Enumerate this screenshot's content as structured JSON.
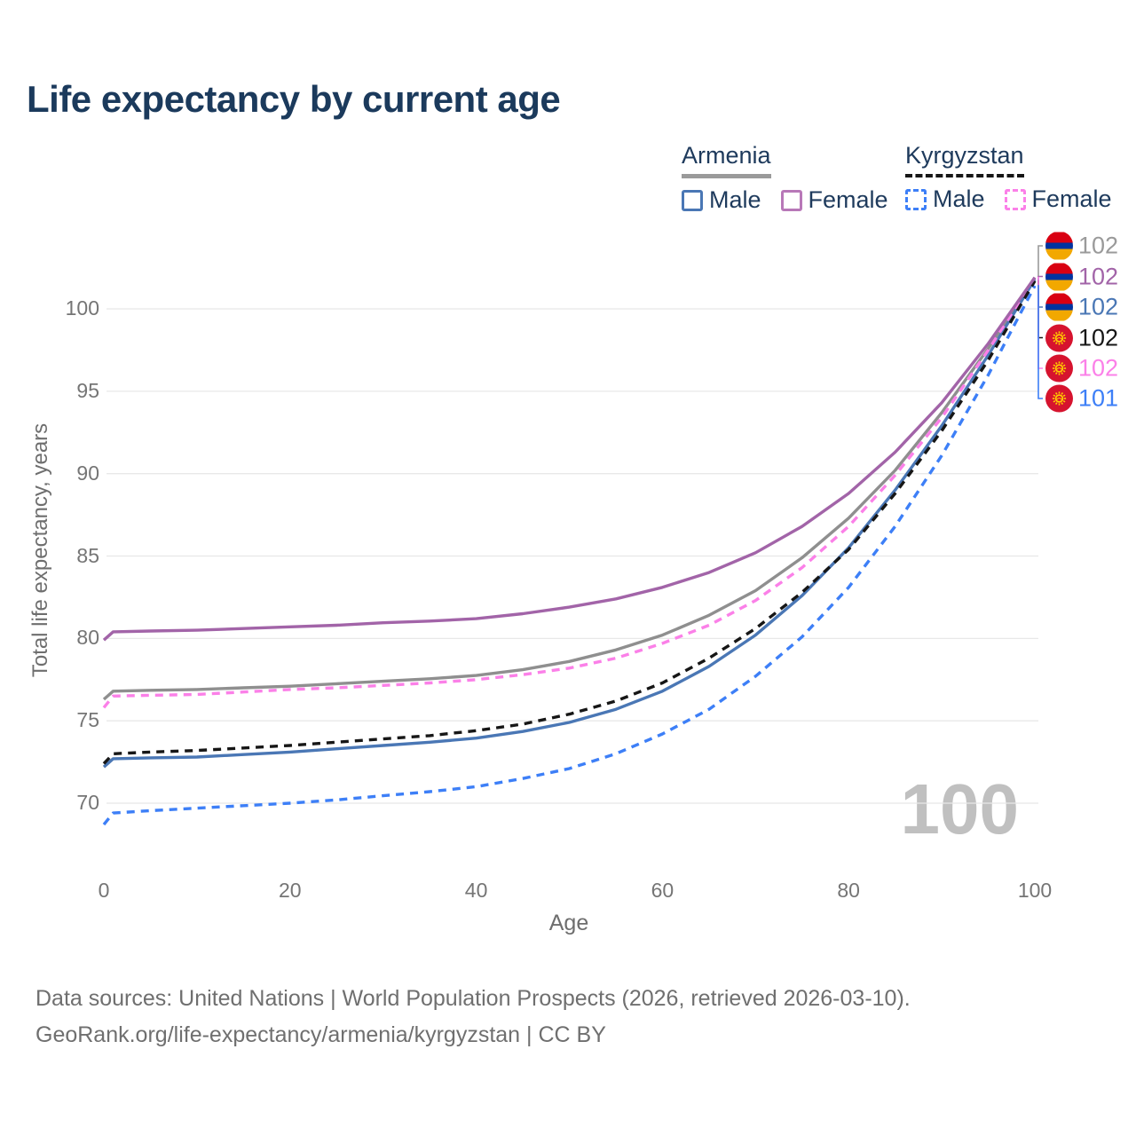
{
  "title": "Life expectancy by current age",
  "watermark_age": "100",
  "footer": {
    "line1": "Data sources: United Nations | World Population Prospects (2026, retrieved 2026-03-10).",
    "line2": "GeoRank.org/life-expectancy/armenia/kyrgyzstan | CC BY"
  },
  "colors": {
    "title_text": "#1b3a5c",
    "legend_text": "#1e3a5c",
    "tick_text": "#757575",
    "axis_title_text": "#6e6e6e",
    "gridline": "#e8e8e8",
    "watermark": "#c0c0c0",
    "armenia_underline": "#9a9a9a",
    "kyrgyzstan_underline": "#161616",
    "flag_armenia_red": "#D90012",
    "flag_armenia_blue": "#0033A0",
    "flag_armenia_orange": "#F2A800",
    "flag_kyrgyzstan_red": "#D6132E",
    "flag_kyrgyzstan_sun": "#FFCC00"
  },
  "legend": {
    "groups": [
      {
        "name": "Armenia",
        "underline_style": "solid",
        "underline_color": "#9a9a9a",
        "items": [
          {
            "label": "Male",
            "color": "#4a77b5",
            "dashed": false
          },
          {
            "label": "Female",
            "color": "#b878b8",
            "dashed": false
          }
        ]
      },
      {
        "name": "Kyrgyzstan",
        "underline_style": "dashed",
        "underline_color": "#161616",
        "items": [
          {
            "label": "Male",
            "color": "#3d7ff7",
            "dashed": true
          },
          {
            "label": "Female",
            "color": "#fb80e8",
            "dashed": true
          }
        ]
      }
    ]
  },
  "chart_data": {
    "type": "line",
    "title": "Life expectancy by current age",
    "xlabel": "Age",
    "ylabel": "Total life expectancy, years",
    "xlim": [
      0,
      100
    ],
    "ylim": [
      67,
      103
    ],
    "x_ticks": [
      0,
      20,
      40,
      60,
      80,
      100
    ],
    "y_ticks": [
      70,
      75,
      80,
      85,
      90,
      95,
      100
    ],
    "grid": "horizontal",
    "legend_position": "top-right",
    "series": [
      {
        "id": "armenia_male",
        "name": "Armenia Male",
        "color": "#4a77b5",
        "dashed": false,
        "values": [
          [
            0,
            72.2
          ],
          [
            1,
            72.7
          ],
          [
            5,
            72.75
          ],
          [
            10,
            72.8
          ],
          [
            15,
            72.95
          ],
          [
            20,
            73.1
          ],
          [
            25,
            73.3
          ],
          [
            30,
            73.5
          ],
          [
            35,
            73.7
          ],
          [
            40,
            73.95
          ],
          [
            45,
            74.35
          ],
          [
            50,
            74.9
          ],
          [
            55,
            75.7
          ],
          [
            60,
            76.8
          ],
          [
            65,
            78.3
          ],
          [
            70,
            80.2
          ],
          [
            75,
            82.6
          ],
          [
            80,
            85.5
          ],
          [
            85,
            89.0
          ],
          [
            90,
            92.9
          ],
          [
            95,
            97.2
          ],
          [
            100,
            101.8
          ]
        ]
      },
      {
        "id": "armenia_female",
        "name": "Armenia Female",
        "color": "#a264a8",
        "dashed": false,
        "values": [
          [
            0,
            79.9
          ],
          [
            1,
            80.4
          ],
          [
            5,
            80.45
          ],
          [
            10,
            80.5
          ],
          [
            15,
            80.6
          ],
          [
            20,
            80.7
          ],
          [
            25,
            80.8
          ],
          [
            30,
            80.95
          ],
          [
            35,
            81.05
          ],
          [
            40,
            81.2
          ],
          [
            45,
            81.5
          ],
          [
            50,
            81.9
          ],
          [
            55,
            82.4
          ],
          [
            60,
            83.1
          ],
          [
            65,
            84.0
          ],
          [
            70,
            85.2
          ],
          [
            75,
            86.8
          ],
          [
            80,
            88.8
          ],
          [
            85,
            91.3
          ],
          [
            90,
            94.3
          ],
          [
            95,
            97.9
          ],
          [
            100,
            101.9
          ]
        ]
      },
      {
        "id": "armenia_both",
        "name": "Armenia Both sexes",
        "color": "#8f8f8f",
        "dashed": false,
        "values": [
          [
            0,
            76.3
          ],
          [
            1,
            76.8
          ],
          [
            5,
            76.85
          ],
          [
            10,
            76.9
          ],
          [
            15,
            77.0
          ],
          [
            20,
            77.1
          ],
          [
            25,
            77.25
          ],
          [
            30,
            77.4
          ],
          [
            35,
            77.55
          ],
          [
            40,
            77.75
          ],
          [
            45,
            78.1
          ],
          [
            50,
            78.6
          ],
          [
            55,
            79.3
          ],
          [
            60,
            80.2
          ],
          [
            65,
            81.4
          ],
          [
            70,
            82.9
          ],
          [
            75,
            84.9
          ],
          [
            80,
            87.3
          ],
          [
            85,
            90.2
          ],
          [
            90,
            93.7
          ],
          [
            95,
            97.6
          ],
          [
            100,
            101.9
          ]
        ]
      },
      {
        "id": "kyrgyzstan_male",
        "name": "Kyrgyzstan Male",
        "color": "#3d7ff7",
        "dashed": true,
        "values": [
          [
            0,
            68.7
          ],
          [
            1,
            69.4
          ],
          [
            5,
            69.55
          ],
          [
            10,
            69.7
          ],
          [
            15,
            69.85
          ],
          [
            20,
            70.0
          ],
          [
            25,
            70.2
          ],
          [
            30,
            70.45
          ],
          [
            35,
            70.7
          ],
          [
            40,
            71.0
          ],
          [
            45,
            71.5
          ],
          [
            50,
            72.1
          ],
          [
            55,
            73.0
          ],
          [
            60,
            74.2
          ],
          [
            65,
            75.7
          ],
          [
            70,
            77.7
          ],
          [
            75,
            80.1
          ],
          [
            80,
            83.1
          ],
          [
            85,
            86.8
          ],
          [
            90,
            91.1
          ],
          [
            95,
            96.0
          ],
          [
            100,
            101.4
          ]
        ]
      },
      {
        "id": "kyrgyzstan_female",
        "name": "Kyrgyzstan Female",
        "color": "#fb80e8",
        "dashed": true,
        "values": [
          [
            0,
            75.8
          ],
          [
            1,
            76.5
          ],
          [
            5,
            76.55
          ],
          [
            10,
            76.6
          ],
          [
            15,
            76.75
          ],
          [
            20,
            76.9
          ],
          [
            25,
            77.0
          ],
          [
            30,
            77.15
          ],
          [
            35,
            77.3
          ],
          [
            40,
            77.5
          ],
          [
            45,
            77.8
          ],
          [
            50,
            78.2
          ],
          [
            55,
            78.8
          ],
          [
            60,
            79.7
          ],
          [
            65,
            80.8
          ],
          [
            70,
            82.3
          ],
          [
            75,
            84.3
          ],
          [
            80,
            86.8
          ],
          [
            85,
            89.9
          ],
          [
            90,
            93.4
          ],
          [
            95,
            97.5
          ],
          [
            100,
            101.9
          ]
        ]
      },
      {
        "id": "kyrgyzstan_both",
        "name": "Kyrgyzstan Both sexes",
        "color": "#161616",
        "dashed": true,
        "values": [
          [
            0,
            72.4
          ],
          [
            1,
            73.0
          ],
          [
            5,
            73.1
          ],
          [
            10,
            73.2
          ],
          [
            15,
            73.35
          ],
          [
            20,
            73.5
          ],
          [
            25,
            73.7
          ],
          [
            30,
            73.9
          ],
          [
            35,
            74.1
          ],
          [
            40,
            74.4
          ],
          [
            45,
            74.8
          ],
          [
            50,
            75.4
          ],
          [
            55,
            76.2
          ],
          [
            60,
            77.3
          ],
          [
            65,
            78.8
          ],
          [
            70,
            80.6
          ],
          [
            75,
            82.8
          ],
          [
            80,
            85.4
          ],
          [
            85,
            88.8
          ],
          [
            90,
            92.6
          ],
          [
            95,
            96.9
          ],
          [
            100,
            101.7
          ]
        ]
      }
    ],
    "end_labels": [
      {
        "series": "armenia_both",
        "flag": "armenia",
        "value": "102",
        "color": "#9a9a9a"
      },
      {
        "series": "armenia_female",
        "flag": "armenia",
        "value": "102",
        "color": "#a264a8"
      },
      {
        "series": "armenia_male",
        "flag": "armenia",
        "value": "102",
        "color": "#4a77b5"
      },
      {
        "series": "kyrgyzstan_both",
        "flag": "kyrgyzstan",
        "value": "102",
        "color": "#161616"
      },
      {
        "series": "kyrgyzstan_female",
        "flag": "kyrgyzstan",
        "value": "102",
        "color": "#fb80e8"
      },
      {
        "series": "kyrgyzstan_male",
        "flag": "kyrgyzstan",
        "value": "101",
        "color": "#3d7ff7"
      }
    ]
  }
}
